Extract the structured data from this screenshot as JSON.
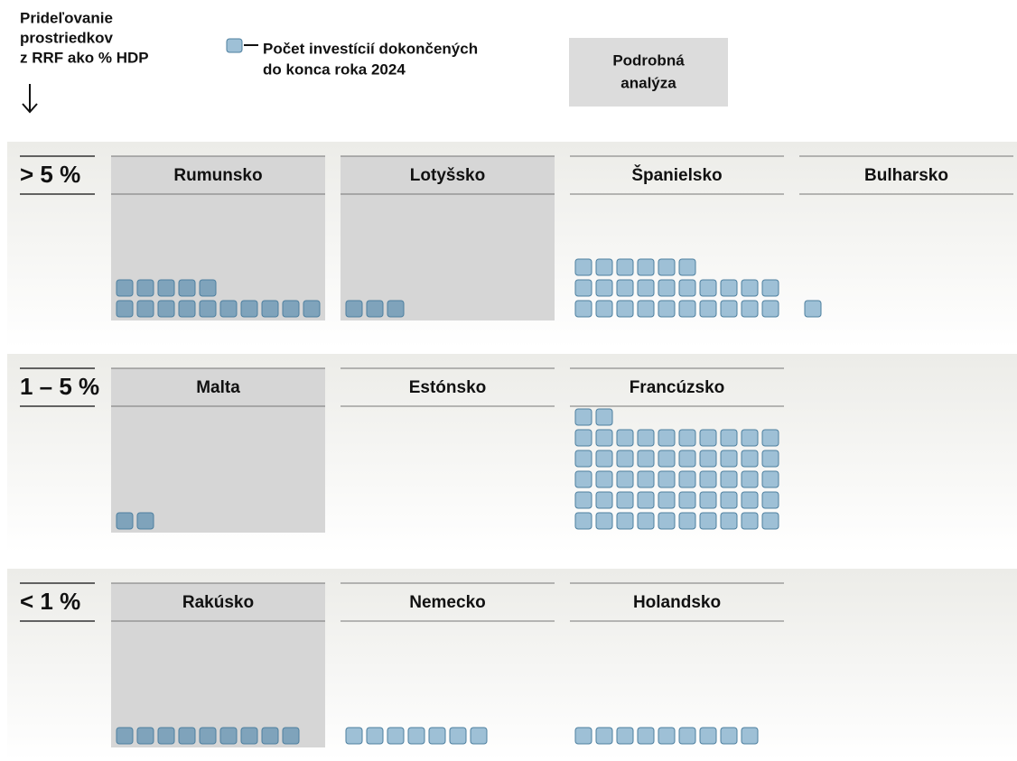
{
  "header": {
    "axis_label_lines": [
      "Prideľovanie",
      "prostriedkov",
      "z RRF ako % HDP"
    ],
    "legend_lines": [
      "Počet investícií dokončených",
      "do konca roka 2024"
    ],
    "button_lines": [
      "Podrobná",
      "analýza"
    ]
  },
  "groups": [
    {
      "label": "> 5 %",
      "countries": [
        {
          "name": "Rumunsko",
          "count": 15,
          "highlighted": true
        },
        {
          "name": "Lotyšsko",
          "count": 3,
          "highlighted": true
        },
        {
          "name": "Španielsko",
          "count": 26,
          "highlighted": false
        },
        {
          "name": "Bulharsko",
          "count": 1,
          "highlighted": false
        }
      ]
    },
    {
      "label": "1 – 5 %",
      "countries": [
        {
          "name": "Malta",
          "count": 2,
          "highlighted": true
        },
        {
          "name": "Estónsko",
          "count": 0,
          "highlighted": false
        },
        {
          "name": "Francúzsko",
          "count": 52,
          "highlighted": false
        }
      ]
    },
    {
      "label": "< 1 %",
      "countries": [
        {
          "name": "Rakúsko",
          "count": 9,
          "highlighted": true
        },
        {
          "name": "Nemecko",
          "count": 7,
          "highlighted": false
        },
        {
          "name": "Holandsko",
          "count": 9,
          "highlighted": false
        }
      ]
    }
  ]
}
